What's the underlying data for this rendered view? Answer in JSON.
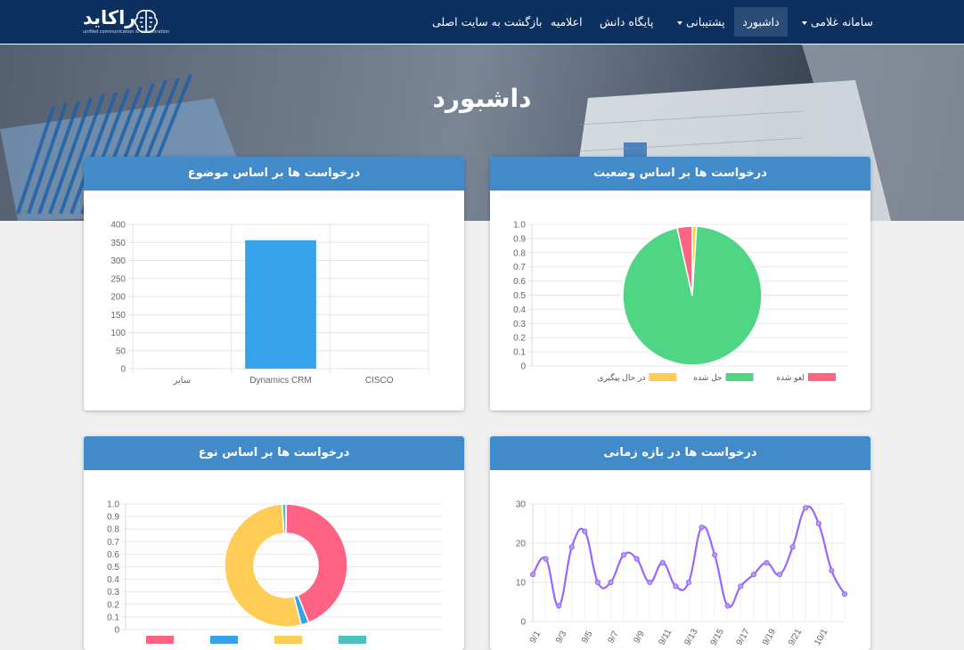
{
  "brand": {
    "name": "راکاید",
    "tagline": "unified communication & collaboration"
  },
  "nav": [
    {
      "label": "سامانه غلامی",
      "dropdown": true,
      "active": false
    },
    {
      "label": "داشبورد",
      "dropdown": false,
      "active": true
    },
    {
      "label": "پشتیبانی",
      "dropdown": true,
      "active": false
    },
    {
      "label": "پایگاه دانش",
      "dropdown": false,
      "active": false
    },
    {
      "label": "اعلامیه",
      "dropdown": false,
      "active": false
    },
    {
      "label": "بازگشت به سایت اصلی",
      "dropdown": false,
      "active": false
    }
  ],
  "hero": {
    "title": "داشبورد"
  },
  "cards": {
    "topic": {
      "title": "درخواست ها بر اساس موضوع"
    },
    "status": {
      "title": "درخواست ها بر اساس وضعیت"
    },
    "type": {
      "title": "درخواست ها بر اساس نوع"
    },
    "timeline": {
      "title": "درخواست ها در بازه زمانی"
    }
  },
  "colors": {
    "navbar": "#0c3060",
    "card_header": "#428bca",
    "bar": "#36a2eb",
    "green": "#4bc0c0",
    "pink": "#ff6384",
    "yellow": "#ffcd56",
    "purple": "#9966ff"
  },
  "chart_data": [
    {
      "id": "topic",
      "type": "bar",
      "categories": [
        "سایر",
        "Dynamics CRM",
        "CISCO"
      ],
      "values": [
        1,
        356,
        1
      ],
      "ylim": [
        0,
        400
      ],
      "yticks": [
        0,
        50,
        100,
        150,
        200,
        250,
        300,
        350,
        400
      ],
      "color": "#36a2eb"
    },
    {
      "id": "status",
      "type": "pie",
      "labels": [
        "در حال پیگیری",
        "حل شده",
        "لغو شده"
      ],
      "values": [
        0.01,
        0.955,
        0.035
      ],
      "colors": [
        "#ffcd56",
        "#50d585",
        "#ff6384"
      ],
      "yticks": [
        "0",
        "0.1",
        "0.2",
        "0.3",
        "0.4",
        "0.5",
        "0.6",
        "0.7",
        "0.8",
        "0.9",
        "1.0"
      ]
    },
    {
      "id": "type",
      "type": "pie",
      "labels": [
        "",
        "",
        "",
        ""
      ],
      "values": [
        0.44,
        0.02,
        0.53,
        0.01
      ],
      "colors": [
        "#ff6384",
        "#36a2eb",
        "#ffcd56",
        "#4bc0c0"
      ],
      "yticks": [
        "0",
        "0.1",
        "0.2",
        "0.3",
        "0.4",
        "0.5",
        "0.6",
        "0.7",
        "0.8",
        "0.9",
        "1.0"
      ]
    },
    {
      "id": "timeline",
      "type": "line",
      "values": [
        12,
        16,
        4,
        19,
        23,
        10,
        10,
        17,
        16,
        10,
        15,
        9,
        10,
        24,
        17,
        4,
        9,
        12,
        15,
        12,
        19,
        29,
        25,
        13,
        7
      ],
      "xticks": [
        "9/1",
        "9/3",
        "9/5",
        "9/7",
        "9/9",
        "9/11",
        "9/13",
        "9/15",
        "9/17",
        "9/19",
        "9/21",
        "10/1"
      ],
      "ylim": [
        0,
        30
      ],
      "yticks": [
        0,
        10,
        20,
        30
      ],
      "color": "#9966ff"
    }
  ]
}
